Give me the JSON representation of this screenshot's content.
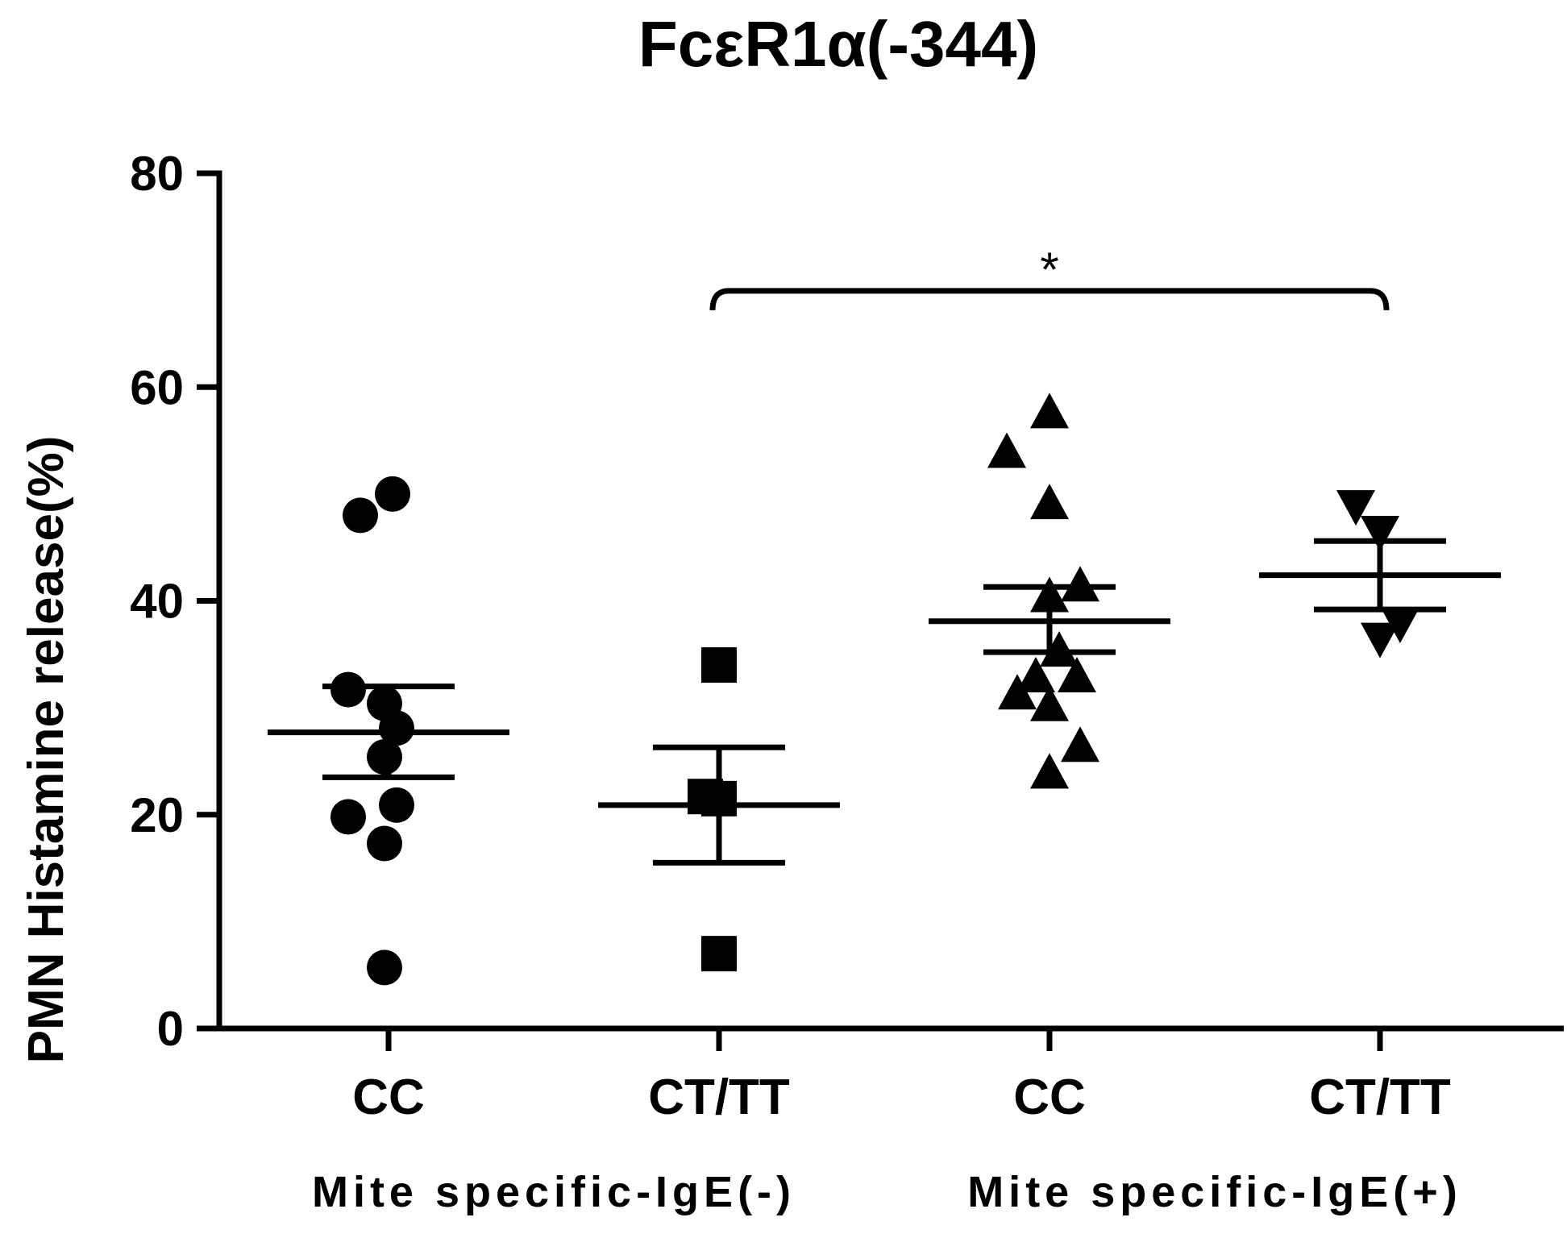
{
  "chart_data": {
    "type": "scatter",
    "title": "FcεR1α(-344)",
    "ylabel": "PMN Histamine release(%)",
    "xlabel": "",
    "ylim": [
      0,
      80
    ],
    "yticks": [
      0,
      20,
      40,
      60,
      80
    ],
    "grid": false,
    "categories": [
      "CC",
      "CT/TT",
      "CC",
      "CT/TT"
    ],
    "group_labels": [
      {
        "label": "Mite specific-IgE(-)",
        "categories": [
          0,
          1
        ]
      },
      {
        "label": "Mite specific-IgE(+)",
        "categories": [
          2,
          3
        ]
      }
    ],
    "series": [
      {
        "category_index": 0,
        "marker": "circle",
        "values": [
          48,
          50,
          31.7,
          30.4,
          28.1,
          25.4,
          19.8,
          17.3,
          20.9,
          5.7
        ],
        "jitter": [
          -0.35,
          0.05,
          -0.5,
          -0.05,
          0.1,
          -0.05,
          -0.5,
          -0.05,
          0.1,
          -0.05
        ],
        "mean": 27.7,
        "sem_upper": 32.0,
        "sem_lower": 23.5
      },
      {
        "category_index": 1,
        "marker": "square",
        "values": [
          34,
          21.7,
          21.5,
          7.0
        ],
        "jitter": [
          0.0,
          -0.17,
          0.0,
          0.0
        ],
        "mean": 20.9,
        "sem_upper": 26.3,
        "sem_lower": 15.5
      },
      {
        "category_index": 2,
        "marker": "triangle-up",
        "values": [
          57.5,
          53.8,
          49.0,
          41.3,
          40.3,
          35.2,
          32.8,
          31.2,
          30.1,
          32.8,
          26.3,
          23.8
        ],
        "jitter": [
          0.0,
          -0.53,
          0.0,
          0.38,
          0.0,
          0.12,
          -0.17,
          -0.4,
          0.0,
          0.34,
          0.38,
          0.0
        ],
        "mean": 38.1,
        "sem_upper": 41.3,
        "sem_lower": 35.2
      },
      {
        "category_index": 3,
        "marker": "triangle-down",
        "values": [
          49.0,
          46.6,
          38.0,
          36.6
        ],
        "jitter": [
          -0.3,
          0.0,
          0.25,
          0.0
        ],
        "mean": 42.4,
        "sem_upper": 45.6,
        "sem_lower": 39.2
      }
    ],
    "annotations": [
      {
        "type": "significance_bracket",
        "from_category": 1,
        "to_category": 3,
        "y": 69,
        "label": "*"
      }
    ]
  }
}
